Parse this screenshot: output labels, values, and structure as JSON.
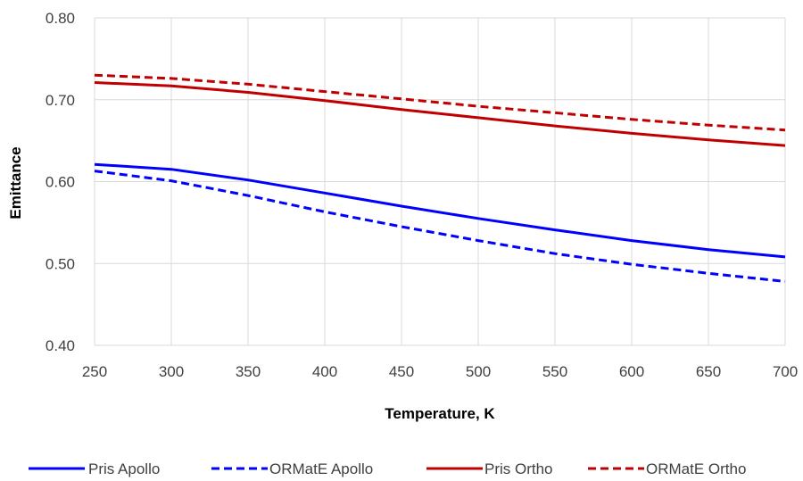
{
  "chart_data": {
    "type": "line",
    "title": "",
    "xlabel": "Temperature, K",
    "ylabel": "Emittance",
    "xlim": [
      250,
      700
    ],
    "ylim": [
      0.4,
      0.8
    ],
    "x_ticks": [
      250,
      300,
      350,
      400,
      450,
      500,
      550,
      600,
      650,
      700
    ],
    "x_tick_labels": [
      "250",
      "300",
      "350",
      "400",
      "450",
      "500",
      "550",
      "600",
      "650",
      "700"
    ],
    "y_ticks": [
      0.4,
      0.5,
      0.6,
      0.7,
      0.8
    ],
    "y_tick_labels": [
      "0.40",
      "0.50",
      "0.60",
      "0.70",
      "0.80"
    ],
    "grid": true,
    "legend_position": "bottom",
    "x": [
      250,
      300,
      350,
      400,
      450,
      500,
      550,
      600,
      650,
      700
    ],
    "series": [
      {
        "name": "Pris Apollo",
        "color": "#0000FF",
        "dash": "solid",
        "values": [
          0.621,
          0.615,
          0.602,
          0.586,
          0.57,
          0.555,
          0.541,
          0.528,
          0.517,
          0.508
        ]
      },
      {
        "name": "ORMatE Apollo",
        "color": "#0000FF",
        "dash": "dashed",
        "values": [
          0.613,
          0.601,
          0.583,
          0.563,
          0.545,
          0.528,
          0.512,
          0.499,
          0.488,
          0.478
        ]
      },
      {
        "name": "Pris Ortho",
        "color": "#C00000",
        "dash": "solid",
        "values": [
          0.721,
          0.717,
          0.709,
          0.699,
          0.688,
          0.678,
          0.668,
          0.659,
          0.651,
          0.644
        ]
      },
      {
        "name": "ORMatE Ortho",
        "color": "#C00000",
        "dash": "dashed",
        "values": [
          0.73,
          0.726,
          0.719,
          0.71,
          0.701,
          0.692,
          0.684,
          0.676,
          0.669,
          0.663
        ]
      }
    ]
  }
}
